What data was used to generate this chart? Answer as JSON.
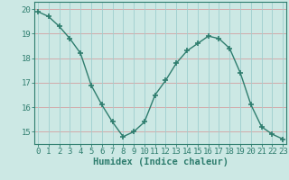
{
  "x": [
    0,
    1,
    2,
    3,
    4,
    5,
    6,
    7,
    8,
    9,
    10,
    11,
    12,
    13,
    14,
    15,
    16,
    17,
    18,
    19,
    20,
    21,
    22,
    23
  ],
  "y": [
    19.9,
    19.7,
    19.3,
    18.8,
    18.2,
    16.9,
    16.1,
    15.4,
    14.8,
    15.0,
    15.4,
    16.5,
    17.1,
    17.8,
    18.3,
    18.6,
    18.9,
    18.8,
    18.4,
    17.4,
    16.1,
    15.2,
    14.9,
    14.7
  ],
  "line_color": "#2e7d6e",
  "marker": "+",
  "marker_size": 5,
  "bg_color": "#cce8e4",
  "hgrid_color": "#d4a0a0",
  "vgrid_color": "#9ecece",
  "xlabel": "Humidex (Indice chaleur)",
  "ylim": [
    14.5,
    20.3
  ],
  "yticks": [
    15,
    16,
    17,
    18,
    19,
    20
  ],
  "xticks": [
    0,
    1,
    2,
    3,
    4,
    5,
    6,
    7,
    8,
    9,
    10,
    11,
    12,
    13,
    14,
    15,
    16,
    17,
    18,
    19,
    20,
    21,
    22,
    23
  ],
  "xlim": [
    -0.3,
    23.3
  ],
  "axis_color": "#2e7d6e",
  "tick_color": "#2e7d6e",
  "label_color": "#2e7d6e",
  "xlabel_fontsize": 7.5,
  "tick_fontsize": 6.5,
  "linewidth": 1.0,
  "marker_color": "#2e7d6e"
}
